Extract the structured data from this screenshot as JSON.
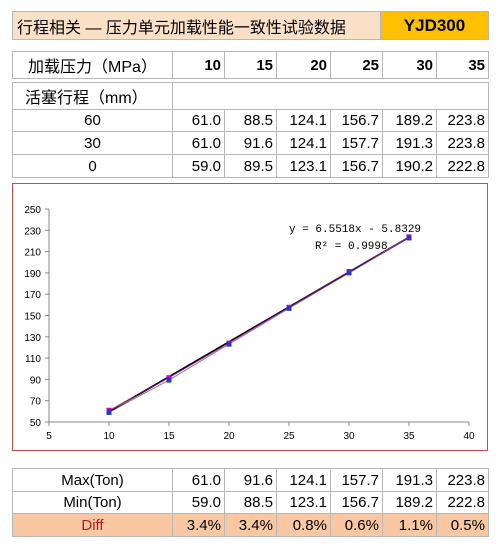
{
  "header": {
    "title": "行程相关 — 压力单元加载性能一致性试验数据",
    "model": "YJD300"
  },
  "table": {
    "pressure_label": "加载压力（MPa）",
    "pressures": [
      "10",
      "15",
      "20",
      "25",
      "30",
      "35"
    ],
    "stroke_label": "活塞行程（mm）",
    "rows": [
      {
        "stroke": "60",
        "values": [
          "61.0",
          "88.5",
          "124.1",
          "156.7",
          "189.2",
          "223.8"
        ]
      },
      {
        "stroke": "30",
        "values": [
          "61.0",
          "91.6",
          "124.1",
          "157.7",
          "191.3",
          "223.8"
        ]
      },
      {
        "stroke": "0",
        "values": [
          "59.0",
          "89.5",
          "123.1",
          "156.7",
          "190.2",
          "222.8"
        ]
      }
    ]
  },
  "summary": {
    "max_label": "Max(Ton)",
    "max_values": [
      "61.0",
      "91.6",
      "124.1",
      "157.7",
      "191.3",
      "223.8"
    ],
    "min_label": "Min(Ton)",
    "min_values": [
      "59.0",
      "88.5",
      "123.1",
      "156.7",
      "189.2",
      "222.8"
    ],
    "diff_label": "Diff",
    "diff_values": [
      "3.4%",
      "3.4%",
      "0.8%",
      "0.6%",
      "1.1%",
      "0.5%"
    ]
  },
  "chart_data": {
    "type": "scatter",
    "x": [
      10,
      15,
      20,
      25,
      30,
      35
    ],
    "series": [
      {
        "values": [
          61.0,
          88.5,
          124.1,
          156.7,
          189.2,
          223.8
        ],
        "marker_color": "#e6e600"
      },
      {
        "values": [
          61.0,
          91.6,
          124.1,
          157.7,
          191.3,
          223.8
        ],
        "marker_color": "#cc00cc"
      },
      {
        "values": [
          59.0,
          89.5,
          123.1,
          156.7,
          190.2,
          222.8
        ],
        "marker_color": "#3333cc"
      }
    ],
    "trendline": {
      "slope": 6.5518,
      "intercept": -5.8329,
      "color": "#000000"
    },
    "equation": "y = 6.5518x - 5.8329",
    "r2_label": "R² = 0.9998",
    "xlim": [
      5,
      40
    ],
    "ylim": [
      50,
      250
    ],
    "xticks": [
      5,
      10,
      15,
      20,
      25,
      30,
      35,
      40
    ],
    "yticks": [
      50,
      70,
      90,
      110,
      130,
      150,
      170,
      190,
      210,
      230,
      250
    ],
    "grid": false,
    "legend": "none"
  }
}
